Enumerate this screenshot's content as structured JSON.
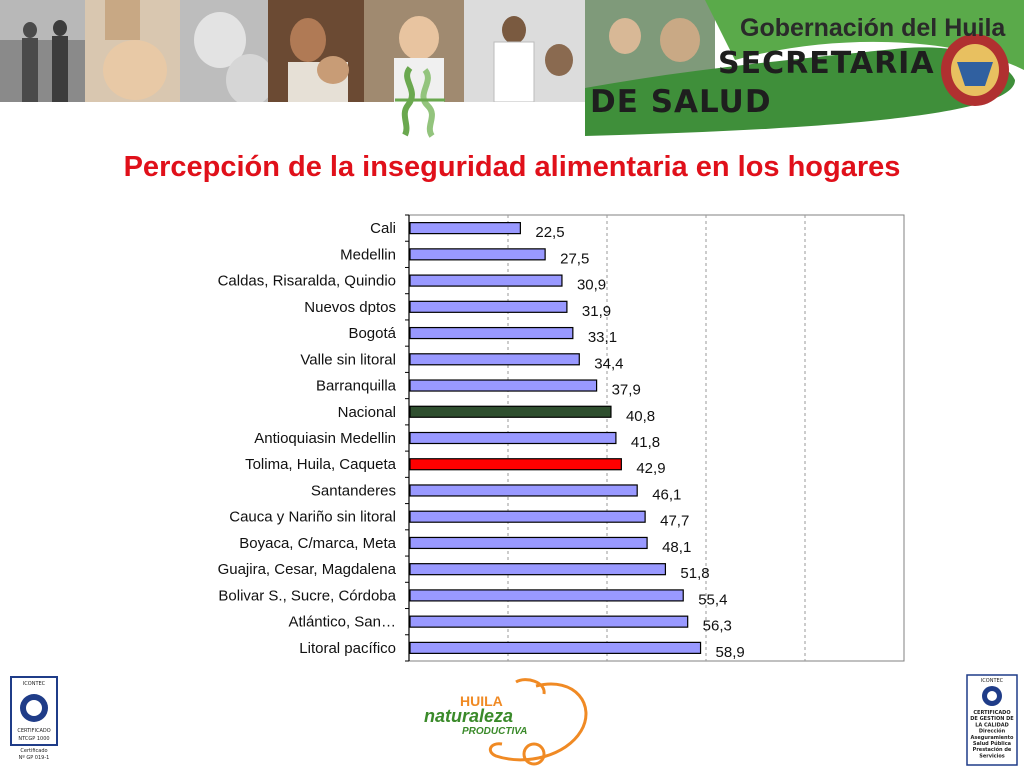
{
  "header": {
    "banner_line1": "Gobernación del Huila",
    "banner_line2": "SECRETARIA",
    "banner_line3": "DE SALUD"
  },
  "title": "Percepción de la inseguridad alimentaria en los hogares",
  "footer": {
    "left_cert_top": "ICONTEC",
    "left_cert_mid": "CERTIFICADO",
    "left_cert_bottom": "NTCGP 1000",
    "left_cert_caption": "Certificado",
    "left_cert_number": "Nº GP 019-1",
    "center_logo_line1": "HUILA",
    "center_logo_line2": "naturaleza",
    "center_logo_line3": "PRODUCTIVA",
    "right_cert_top": "ICONTEC",
    "right_cert_lines": [
      "CERTIFICADO",
      "DE GESTION DE",
      "LA CALIDAD",
      "Dirección",
      "Aseguramiento",
      "Salud Pública",
      "Prestación de",
      "Servicios"
    ]
  },
  "colors": {
    "title": "#e0101a",
    "bar_default": "#9999ff",
    "bar_nacional": "#2f4f2f",
    "bar_highlight": "#ff0000"
  },
  "chart_data": {
    "type": "bar",
    "orientation": "horizontal",
    "title": "Percepción de la inseguridad alimentaria en los hogares",
    "xlabel": "",
    "ylabel": "",
    "xlim": [
      0,
      100
    ],
    "grid": true,
    "legend": "none",
    "categories": [
      "Cali",
      "Medellin",
      "Caldas, Risaralda, Quindio",
      "Nuevos dptos",
      "Bogotá",
      "Valle sin litoral",
      "Barranquilla",
      "Nacional",
      "Antioquiasin Medellin",
      "Tolima, Huila, Caqueta",
      "Santanderes",
      "Cauca y Nariño sin litoral",
      "Boyaca, C/marca, Meta",
      "Guajira, Cesar, Magdalena",
      "Bolivar S., Sucre, Córdoba",
      "Atlántico, San…",
      "Litoral pacífico"
    ],
    "values": [
      22.5,
      27.5,
      30.9,
      31.9,
      33.1,
      34.4,
      37.9,
      40.8,
      41.8,
      42.9,
      46.1,
      47.7,
      48.1,
      51.8,
      55.4,
      56.3,
      58.9
    ],
    "value_labels": [
      "22,5",
      "27,5",
      "30,9",
      "31,9",
      "33,1",
      "34,4",
      "37,9",
      "40,8",
      "41,8",
      "42,9",
      "46,1",
      "47,7",
      "48,1",
      "51,8",
      "55,4",
      "56,3",
      "58,9"
    ],
    "highlight": {
      "Nacional": "#2f4f2f",
      "Tolima, Huila, Caqueta": "#ff0000"
    }
  }
}
